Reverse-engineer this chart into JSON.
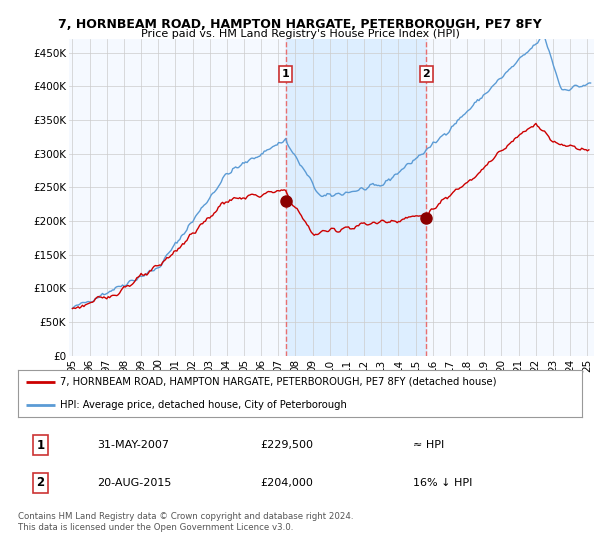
{
  "title_line1": "7, HORNBEAM ROAD, HAMPTON HARGATE, PETERBOROUGH, PE7 8FY",
  "title_line2": "Price paid vs. HM Land Registry's House Price Index (HPI)",
  "ylabel_ticks": [
    "£0",
    "£50K",
    "£100K",
    "£150K",
    "£200K",
    "£250K",
    "£300K",
    "£350K",
    "£400K",
    "£450K"
  ],
  "ytick_values": [
    0,
    50000,
    100000,
    150000,
    200000,
    250000,
    300000,
    350000,
    400000,
    450000
  ],
  "ylim": [
    0,
    470000
  ],
  "xlim_start": 1994.8,
  "xlim_end": 2025.4,
  "xtick_years": [
    1995,
    1996,
    1997,
    1998,
    1999,
    2000,
    2001,
    2002,
    2003,
    2004,
    2005,
    2006,
    2007,
    2008,
    2009,
    2010,
    2011,
    2012,
    2013,
    2014,
    2015,
    2016,
    2017,
    2018,
    2019,
    2020,
    2021,
    2022,
    2023,
    2024,
    2025
  ],
  "hpi_line_color": "#5b9bd5",
  "price_color": "#cc0000",
  "marker_color": "#8b0000",
  "vline_color": "#e87070",
  "band_color": "#ddeeff",
  "background_color": "#ffffff",
  "plot_bg_color": "#f5f9ff",
  "grid_color": "#cccccc",
  "legend_line1": "7, HORNBEAM ROAD, HAMPTON HARGATE, PETERBOROUGH, PE7 8FY (detached house)",
  "legend_line2": "HPI: Average price, detached house, City of Peterborough",
  "annotation1_label": "1",
  "annotation1_date": "31-MAY-2007",
  "annotation1_price": "£229,500",
  "annotation1_hpi": "≈ HPI",
  "annotation1_year": 2007.42,
  "annotation1_price_val": 229500,
  "annotation2_label": "2",
  "annotation2_date": "20-AUG-2015",
  "annotation2_price": "£204,000",
  "annotation2_hpi": "16% ↓ HPI",
  "annotation2_year": 2015.63,
  "annotation2_price_val": 204000,
  "footer": "Contains HM Land Registry data © Crown copyright and database right 2024.\nThis data is licensed under the Open Government Licence v3.0."
}
